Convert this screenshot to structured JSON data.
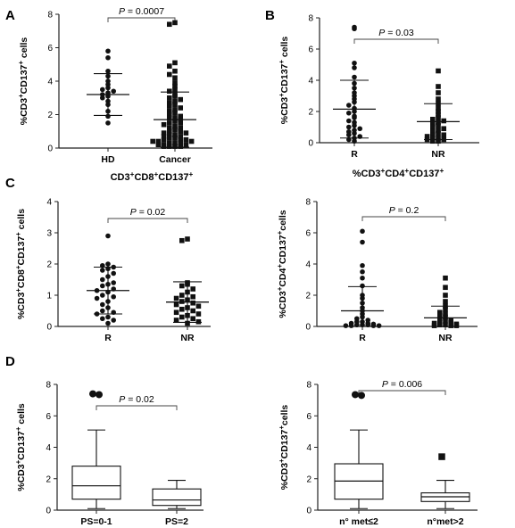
{
  "chart_data": [
    {
      "id": "A",
      "panel_label": "A",
      "type": "scatter",
      "ylabel": "%CD3+CD137+ cells",
      "ylim": [
        0,
        8
      ],
      "yticks": [
        0,
        2,
        4,
        6,
        8
      ],
      "categories": [
        "HD",
        "Cancer"
      ],
      "title": "",
      "pvalue": {
        "italic": "P",
        "rest": " = 0.0007"
      },
      "series": [
        {
          "category": "HD",
          "marker": "circle",
          "mean": 3.2,
          "sd": 1.25,
          "values": [
            5.8,
            5.4,
            4.6,
            4.3,
            4.0,
            3.8,
            3.6,
            3.5,
            3.4,
            3.3,
            3.2,
            3.1,
            3.0,
            2.8,
            2.6,
            2.2,
            1.9,
            1.5
          ]
        },
        {
          "category": "Cancer",
          "marker": "square",
          "mean": 1.7,
          "sd": 1.65,
          "values": [
            7.5,
            7.4,
            5.1,
            4.9,
            4.6,
            4.4,
            4.2,
            3.9,
            3.7,
            3.5,
            3.4,
            3.2,
            3.1,
            3.0,
            2.9,
            2.8,
            2.7,
            2.6,
            2.5,
            2.4,
            2.3,
            2.2,
            2.1,
            2.0,
            1.9,
            1.8,
            1.8,
            1.7,
            1.6,
            1.5,
            1.5,
            1.4,
            1.3,
            1.2,
            1.2,
            1.1,
            1.0,
            1.0,
            0.9,
            0.9,
            0.8,
            0.8,
            0.7,
            0.7,
            0.6,
            0.6,
            0.5,
            0.5,
            0.5,
            0.4,
            0.4,
            0.4,
            0.3,
            0.3,
            0.3,
            0.2,
            0.2,
            0.2,
            0.1,
            0.1,
            0.1,
            0.1
          ]
        }
      ]
    },
    {
      "id": "B",
      "panel_label": "B",
      "type": "scatter",
      "ylabel": "%CD3+CD137+ cells",
      "ylim": [
        0,
        8
      ],
      "yticks": [
        0,
        2,
        4,
        6,
        8
      ],
      "categories": [
        "R",
        "NR"
      ],
      "title": "",
      "pvalue": {
        "italic": "P",
        "rest": " = 0.03"
      },
      "series": [
        {
          "category": "R",
          "marker": "circle",
          "mean": 2.15,
          "sd": 1.85,
          "values": [
            7.4,
            7.3,
            5.1,
            4.8,
            4.2,
            3.8,
            3.5,
            3.2,
            3.0,
            2.8,
            2.6,
            2.4,
            2.2,
            2.0,
            1.9,
            1.7,
            1.6,
            1.4,
            1.3,
            1.1,
            1.0,
            0.9,
            0.8,
            0.7,
            0.6,
            0.5,
            0.4,
            0.3,
            0.2,
            0.1
          ]
        },
        {
          "category": "NR",
          "marker": "square",
          "mean": 1.35,
          "sd": 1.15,
          "values": [
            4.6,
            3.6,
            3.2,
            2.8,
            2.5,
            2.2,
            2.0,
            1.8,
            1.6,
            1.5,
            1.4,
            1.3,
            1.2,
            1.1,
            1.0,
            0.9,
            0.8,
            0.7,
            0.6,
            0.5,
            0.5,
            0.4,
            0.3,
            0.3,
            0.2,
            0.2,
            0.1,
            0.1
          ]
        }
      ]
    },
    {
      "id": "C1",
      "panel_label": "C",
      "type": "scatter",
      "ylabel": "%CD3+CD8+CD137+ cells",
      "ylim": [
        0,
        4
      ],
      "yticks": [
        0,
        1,
        2,
        3,
        4
      ],
      "categories": [
        "R",
        "NR"
      ],
      "title": "CD3+CD8+CD137+",
      "pvalue": {
        "italic": "P",
        "rest": " = 0.02"
      },
      "series": [
        {
          "category": "R",
          "marker": "circle",
          "mean": 1.15,
          "sd": 0.75,
          "values": [
            2.9,
            2.0,
            1.95,
            1.9,
            1.85,
            1.8,
            1.7,
            1.6,
            1.5,
            1.4,
            1.35,
            1.3,
            1.2,
            1.15,
            1.1,
            1.0,
            0.95,
            0.9,
            0.8,
            0.7,
            0.6,
            0.5,
            0.45,
            0.4,
            0.3,
            0.25,
            0.2,
            0.1
          ]
        },
        {
          "category": "NR",
          "marker": "square",
          "mean": 0.78,
          "sd": 0.65,
          "values": [
            2.8,
            2.75,
            1.4,
            1.35,
            1.3,
            1.2,
            1.1,
            1.0,
            0.95,
            0.9,
            0.85,
            0.8,
            0.75,
            0.7,
            0.65,
            0.6,
            0.55,
            0.5,
            0.45,
            0.4,
            0.35,
            0.3,
            0.25,
            0.2,
            0.15,
            0.1
          ]
        }
      ]
    },
    {
      "id": "C2",
      "panel_label": "",
      "type": "scatter",
      "ylabel": "%CD3+CD4+CD137+cells",
      "ylim": [
        0,
        8
      ],
      "yticks": [
        0,
        2,
        4,
        6,
        8
      ],
      "categories": [
        "R",
        "NR"
      ],
      "title": "%CD3+CD4+CD137+",
      "pvalue": {
        "italic": "P",
        "rest": " = 0.2"
      },
      "series": [
        {
          "category": "R",
          "marker": "circle",
          "mean": 1.0,
          "sd": 1.55,
          "values": [
            6.1,
            5.4,
            3.9,
            3.5,
            3.1,
            2.6,
            2.0,
            1.8,
            1.5,
            1.2,
            1.0,
            0.8,
            0.6,
            0.5,
            0.4,
            0.3,
            0.3,
            0.2,
            0.2,
            0.15,
            0.1,
            0.1,
            0.1,
            0.05,
            0.05,
            0.05,
            0.05
          ]
        },
        {
          "category": "NR",
          "marker": "square",
          "mean": 0.55,
          "sd": 0.75,
          "values": [
            3.1,
            2.5,
            2.0,
            1.6,
            1.3,
            1.1,
            0.9,
            0.8,
            0.7,
            0.6,
            0.5,
            0.4,
            0.35,
            0.3,
            0.25,
            0.2,
            0.15,
            0.1,
            0.1,
            0.05,
            0.05,
            0.05
          ]
        }
      ]
    },
    {
      "id": "D1",
      "panel_label": "D",
      "type": "box",
      "ylabel": "%CD3+CD137+ cells",
      "ylim": [
        0,
        8
      ],
      "yticks": [
        0,
        2,
        4,
        6,
        8
      ],
      "categories": [
        "PS=0-1",
        "PS=2"
      ],
      "title": "",
      "pvalue": {
        "italic": "P",
        "rest": " = 0.02"
      },
      "boxes": [
        {
          "category": "PS=0-1",
          "whisker_low": 0.1,
          "q1": 0.7,
          "median": 1.55,
          "q3": 2.8,
          "whisker_high": 5.1,
          "outliers": [
            {
              "value": 7.4,
              "marker": "circle"
            },
            {
              "value": 7.35,
              "marker": "circle"
            }
          ]
        },
        {
          "category": "PS=2",
          "whisker_low": 0.1,
          "q1": 0.3,
          "median": 0.65,
          "q3": 1.35,
          "whisker_high": 1.9,
          "outliers": []
        }
      ]
    },
    {
      "id": "D2",
      "panel_label": "",
      "type": "box",
      "ylabel": "%CD3+CD137+cells",
      "ylim": [
        0,
        8
      ],
      "yticks": [
        0,
        2,
        4,
        6,
        8
      ],
      "categories": [
        "n° met≤2",
        "n°met>2"
      ],
      "title": "",
      "pvalue": {
        "italic": "P",
        "rest": " = 0.006"
      },
      "boxes": [
        {
          "category": "n° met≤2",
          "whisker_low": 0.1,
          "q1": 0.7,
          "median": 1.85,
          "q3": 2.95,
          "whisker_high": 5.1,
          "outliers": [
            {
              "value": 7.35,
              "marker": "circle"
            },
            {
              "value": 7.3,
              "marker": "circle"
            }
          ]
        },
        {
          "category": "n°met>2",
          "whisker_low": 0.1,
          "q1": 0.55,
          "median": 0.85,
          "q3": 1.1,
          "whisker_high": 1.9,
          "outliers": [
            {
              "value": 3.4,
              "marker": "square"
            }
          ]
        }
      ]
    }
  ]
}
